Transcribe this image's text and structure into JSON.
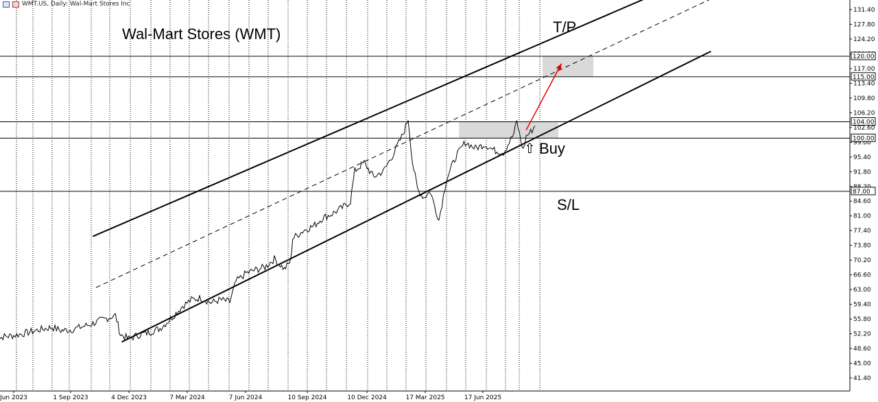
{
  "header": {
    "symbol_text": "WMT.US, Daily:  Wal-Mart Stores Inc"
  },
  "annotations": {
    "title": "Wal-Mart Stores (WMT)",
    "tp": "T/P",
    "sl": "S/L",
    "buy": "Buy",
    "buy_arrow": "⇧"
  },
  "colors": {
    "grid": "#000000",
    "price": "#000000",
    "channel": "#000000",
    "zone": "#d9d9d9",
    "arrow": "#e00000"
  },
  "chart_data": {
    "type": "line",
    "title": "Wal-Mart Stores (WMT)",
    "xlabel": "",
    "ylabel": "",
    "ylim": [
      39.1,
      133.6
    ],
    "y_ticks": [
      "131.40",
      "127.80",
      "124.20",
      "120.60",
      "117.00",
      "113.40",
      "109.80",
      "106.20",
      "102.60",
      "99.00",
      "95.40",
      "91.80",
      "88.20",
      "84.60",
      "81.00",
      "77.40",
      "73.80",
      "70.20",
      "66.60",
      "63.00",
      "59.40",
      "55.80",
      "52.20",
      "48.60",
      "45.00",
      "41.40"
    ],
    "x_ticks": [
      "Jun 2023",
      "1 Sep 2023",
      "4 Dec 2023",
      "7 Mar 2024",
      "7 Jun 2024",
      "10 Sep 2024",
      "10 Dec 2024",
      "17 Mar 2025",
      "17 Jun 2025"
    ],
    "price_labels": [
      "120.00",
      "115.00",
      "104.00",
      "100.00",
      "87.00"
    ],
    "horizontal_levels": [
      120.0,
      115.0,
      104.0,
      100.0,
      87.0
    ],
    "zones": [
      {
        "from_date": "2025-09-20",
        "to_date": "2025-12-10",
        "low": 115.0,
        "high": 120.0
      },
      {
        "from_date": "2025-05-10",
        "to_date": "2025-10-15",
        "low": 100.0,
        "high": 104.0
      }
    ],
    "channel_upper": [
      {
        "date": "2023-10-05",
        "value": 76.0
      },
      {
        "date": "2026-06-15",
        "value": 141.0
      }
    ],
    "channel_mid": [
      {
        "date": "2023-10-10",
        "value": 63.5
      },
      {
        "date": "2026-06-15",
        "value": 134.0
      }
    ],
    "channel_lower": [
      {
        "date": "2023-11-20",
        "value": 50.2
      },
      {
        "date": "2026-06-15",
        "value": 121.2
      }
    ],
    "target_arrow": [
      {
        "date": "2025-08-25",
        "value": 102.0
      },
      {
        "date": "2025-10-20",
        "value": 118.2
      }
    ],
    "series": [
      {
        "values": [
          {
            "date": "2023-05-01",
            "value": 50.5
          },
          {
            "date": "2023-05-15",
            "value": 51.5
          },
          {
            "date": "2023-06-01",
            "value": 51.8
          },
          {
            "date": "2023-06-15",
            "value": 52.2
          },
          {
            "date": "2023-07-01",
            "value": 52.8
          },
          {
            "date": "2023-07-15",
            "value": 53.3
          },
          {
            "date": "2023-08-01",
            "value": 53.8
          },
          {
            "date": "2023-08-15",
            "value": 53.0
          },
          {
            "date": "2023-09-01",
            "value": 53.2
          },
          {
            "date": "2023-09-15",
            "value": 53.8
          },
          {
            "date": "2023-10-01",
            "value": 54.5
          },
          {
            "date": "2023-10-20",
            "value": 55.6
          },
          {
            "date": "2023-11-10",
            "value": 56.7
          },
          {
            "date": "2023-11-18",
            "value": 52.0
          },
          {
            "date": "2023-12-01",
            "value": 51.0
          },
          {
            "date": "2023-12-15",
            "value": 51.8
          },
          {
            "date": "2024-01-01",
            "value": 52.5
          },
          {
            "date": "2024-01-20",
            "value": 53.5
          },
          {
            "date": "2024-02-10",
            "value": 56.5
          },
          {
            "date": "2024-02-25",
            "value": 59.0
          },
          {
            "date": "2024-03-10",
            "value": 60.5
          },
          {
            "date": "2024-03-25",
            "value": 61.0
          },
          {
            "date": "2024-04-10",
            "value": 59.8
          },
          {
            "date": "2024-04-25",
            "value": 60.5
          },
          {
            "date": "2024-05-10",
            "value": 60.0
          },
          {
            "date": "2024-05-20",
            "value": 65.0
          },
          {
            "date": "2024-06-05",
            "value": 67.0
          },
          {
            "date": "2024-06-20",
            "value": 67.8
          },
          {
            "date": "2024-07-05",
            "value": 68.5
          },
          {
            "date": "2024-07-20",
            "value": 70.5
          },
          {
            "date": "2024-08-05",
            "value": 68.0
          },
          {
            "date": "2024-08-15",
            "value": 70.0
          },
          {
            "date": "2024-08-18",
            "value": 75.5
          },
          {
            "date": "2024-09-05",
            "value": 77.5
          },
          {
            "date": "2024-09-20",
            "value": 78.5
          },
          {
            "date": "2024-10-05",
            "value": 80.5
          },
          {
            "date": "2024-10-20",
            "value": 81.5
          },
          {
            "date": "2024-11-05",
            "value": 83.0
          },
          {
            "date": "2024-11-18",
            "value": 84.5
          },
          {
            "date": "2024-11-25",
            "value": 92.0
          },
          {
            "date": "2024-12-10",
            "value": 94.0
          },
          {
            "date": "2024-12-25",
            "value": 90.5
          },
          {
            "date": "2025-01-10",
            "value": 92.0
          },
          {
            "date": "2025-01-25",
            "value": 96.0
          },
          {
            "date": "2025-02-10",
            "value": 101.0
          },
          {
            "date": "2025-02-18",
            "value": 104.8
          },
          {
            "date": "2025-02-25",
            "value": 94.0
          },
          {
            "date": "2025-03-05",
            "value": 87.5
          },
          {
            "date": "2025-03-15",
            "value": 85.5
          },
          {
            "date": "2025-03-25",
            "value": 87.0
          },
          {
            "date": "2025-04-08",
            "value": 80.0
          },
          {
            "date": "2025-04-20",
            "value": 90.0
          },
          {
            "date": "2025-05-05",
            "value": 95.5
          },
          {
            "date": "2025-05-20",
            "value": 99.0
          },
          {
            "date": "2025-06-05",
            "value": 97.5
          },
          {
            "date": "2025-06-20",
            "value": 98.5
          },
          {
            "date": "2025-07-05",
            "value": 97.0
          },
          {
            "date": "2025-07-20",
            "value": 96.5
          },
          {
            "date": "2025-08-05",
            "value": 101.0
          },
          {
            "date": "2025-08-10",
            "value": 104.0
          },
          {
            "date": "2025-08-20",
            "value": 97.0
          },
          {
            "date": "2025-08-25",
            "value": 100.5
          },
          {
            "date": "2025-09-01",
            "value": 101.5
          },
          {
            "date": "2025-09-08",
            "value": 103.0
          }
        ]
      }
    ]
  }
}
